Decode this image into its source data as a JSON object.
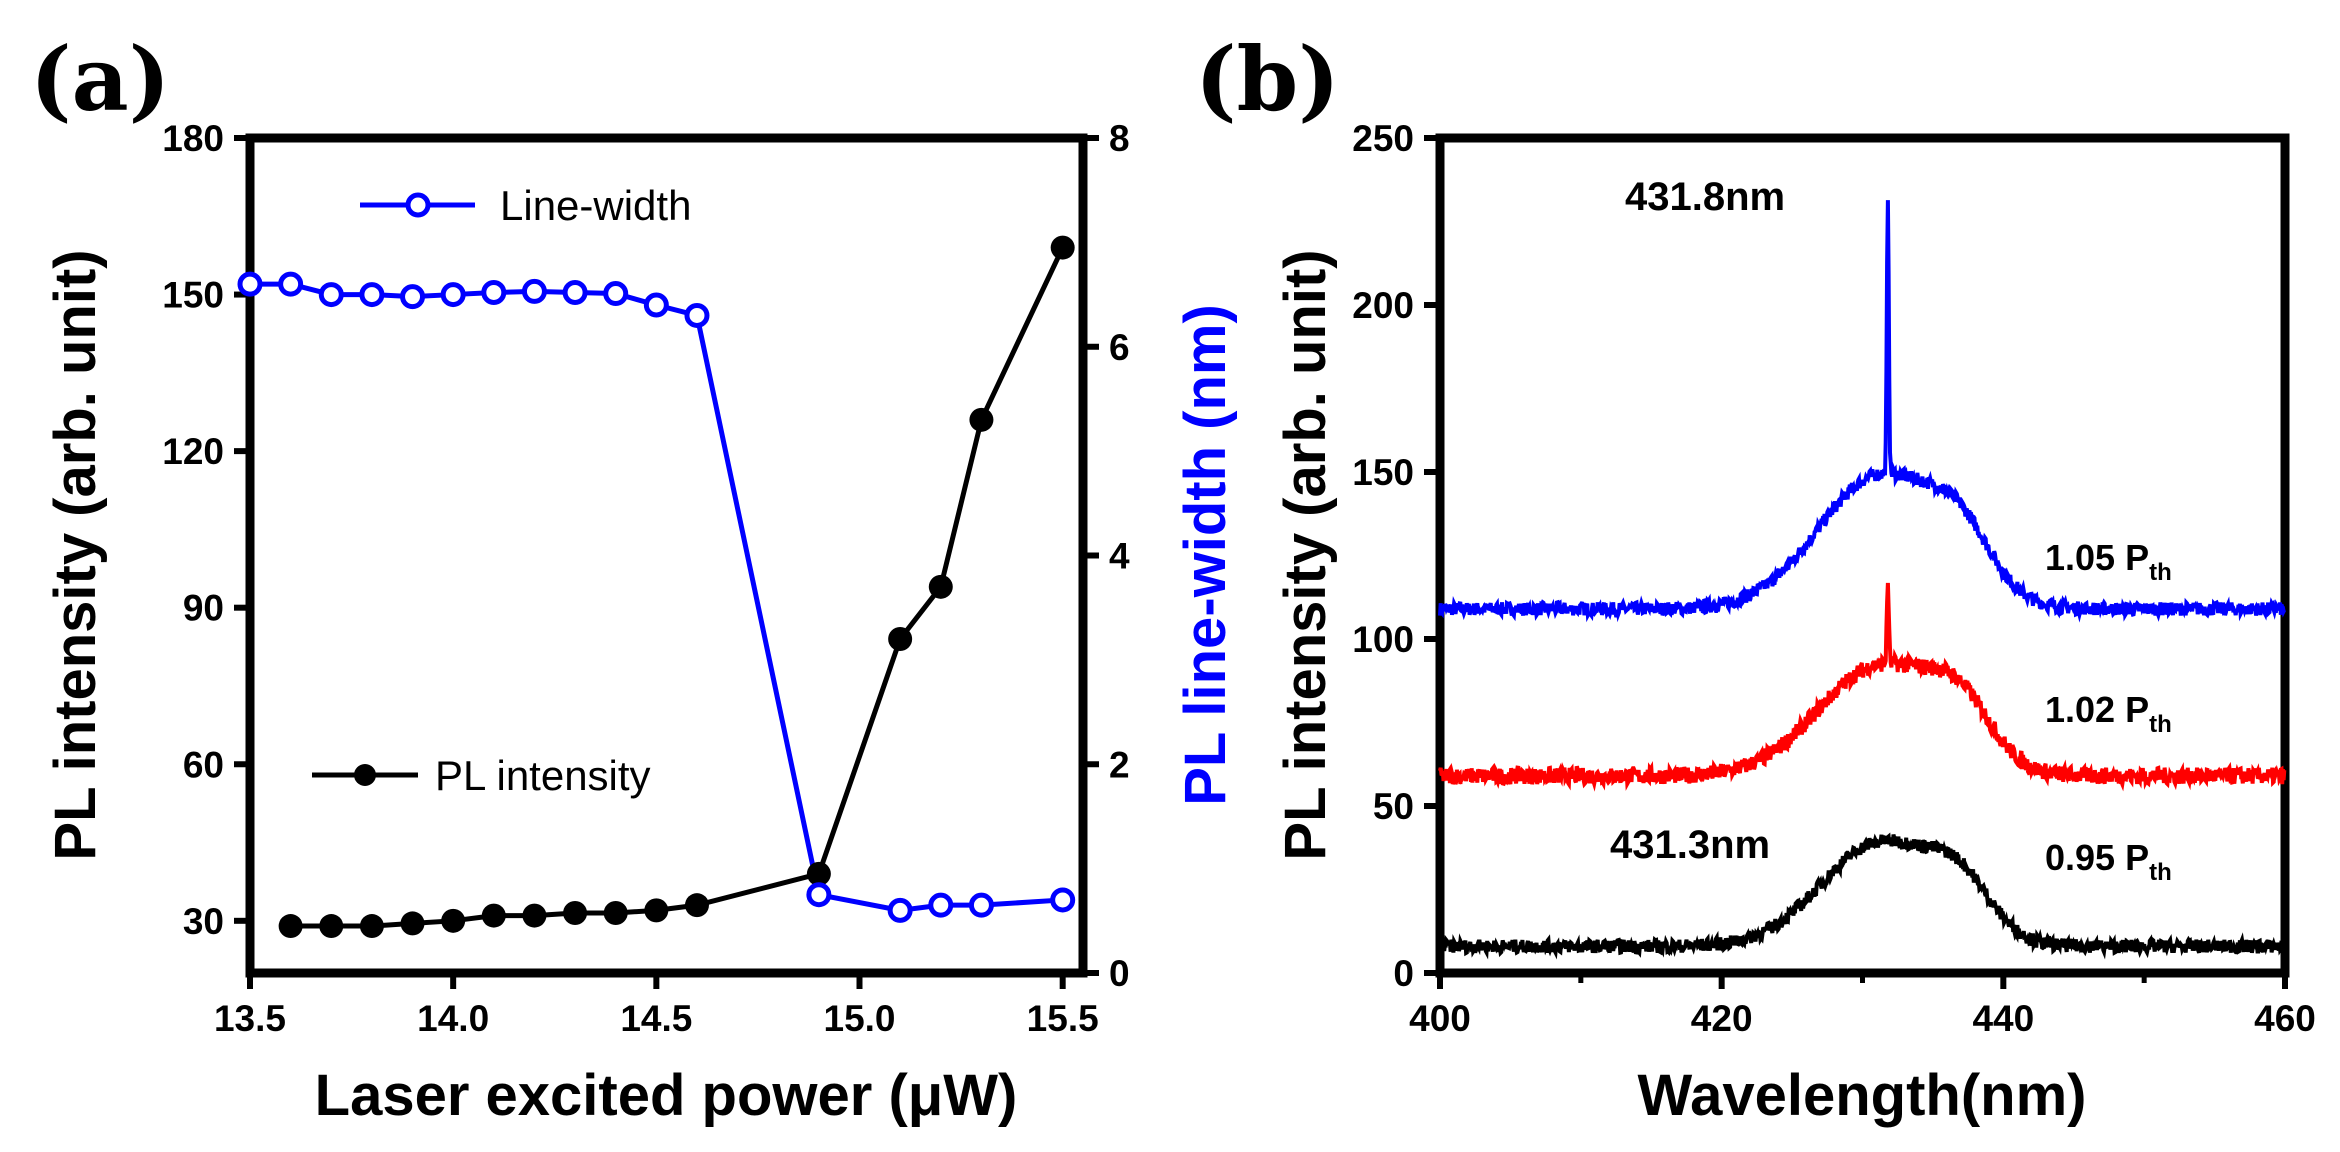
{
  "chart_data": [
    {
      "type": "line",
      "panel_label": "(a)",
      "xlabel_prefix": "Laser excited power (",
      "xlabel_unit": "μW",
      "xlabel_suffix": ")",
      "ylabel": "PL intensity (arb. unit)",
      "y2label": "PL line-width (nm)",
      "xlim": [
        13.5,
        15.55
      ],
      "ylim": [
        20,
        180
      ],
      "y2lim": [
        0,
        8
      ],
      "xticks": [
        "13.5",
        "14.0",
        "14.5",
        "15.0",
        "15.5"
      ],
      "yticks": [
        "30",
        "60",
        "90",
        "120",
        "150",
        "180"
      ],
      "y2ticks": [
        "0",
        "2",
        "4",
        "6",
        "8"
      ],
      "colors": {
        "intensity": "#000000",
        "linewidth": "#0000ff",
        "y2label": "#0000ff"
      },
      "series": [
        {
          "name": "PL intensity",
          "axis": "left",
          "marker": "filled-circle",
          "x": [
            13.6,
            13.7,
            13.8,
            13.9,
            14.0,
            14.1,
            14.2,
            14.3,
            14.4,
            14.5,
            14.6,
            14.9,
            15.1,
            15.2,
            15.3,
            15.5
          ],
          "values": [
            29,
            29,
            29,
            29.5,
            30,
            31,
            31,
            31.5,
            31.5,
            32,
            33,
            39,
            84,
            94,
            126,
            159
          ]
        },
        {
          "name": "Line-width",
          "axis": "right",
          "marker": "open-circle",
          "x": [
            13.5,
            13.6,
            13.7,
            13.8,
            13.9,
            14.0,
            14.1,
            14.2,
            14.3,
            14.4,
            14.5,
            14.6,
            14.9,
            15.1,
            15.2,
            15.3,
            15.5
          ],
          "values": [
            6.6,
            6.6,
            6.5,
            6.5,
            6.48,
            6.5,
            6.52,
            6.53,
            6.52,
            6.51,
            6.4,
            6.3,
            0.75,
            0.6,
            0.65,
            0.65,
            0.7
          ]
        }
      ]
    },
    {
      "type": "line",
      "panel_label": "(b)",
      "xlabel": "Wavelength(nm)",
      "ylabel": "PL intensity (arb. unit)",
      "xlim": [
        400,
        460
      ],
      "ylim": [
        0,
        250
      ],
      "xticks": [
        "400",
        "420",
        "440",
        "460"
      ],
      "yticks": [
        "0",
        "50",
        "100",
        "150",
        "200",
        "250"
      ],
      "annotations": [
        "431.8nm",
        "431.3nm"
      ],
      "series": [
        {
          "name": "1.05",
          "subscript": "th",
          "label_prefix": "1.05 P",
          "color": "#0000ff",
          "baseline": 109,
          "peak": 40,
          "center": 431.3,
          "width": 4.4,
          "shoulder": 14,
          "shoulder_center": 437,
          "spike": 80,
          "spike_center": 431.8,
          "noise": 2
        },
        {
          "name": "1.02",
          "subscript": "th",
          "label_prefix": "1.02 P",
          "color": "#ff0000",
          "baseline": 59,
          "peak": 33,
          "center": 431.3,
          "width": 4.4,
          "shoulder": 14,
          "shoulder_center": 437,
          "spike": 24,
          "spike_center": 431.8,
          "noise": 2.5
        },
        {
          "name": "0.95",
          "subscript": "th",
          "label_prefix": "0.95 P",
          "color": "#000000",
          "baseline": 8,
          "peak": 31,
          "center": 431.3,
          "width": 4.2,
          "shoulder": 13,
          "shoulder_center": 437,
          "spike": 0,
          "spike_center": 431.8,
          "noise": 2
        }
      ]
    }
  ]
}
